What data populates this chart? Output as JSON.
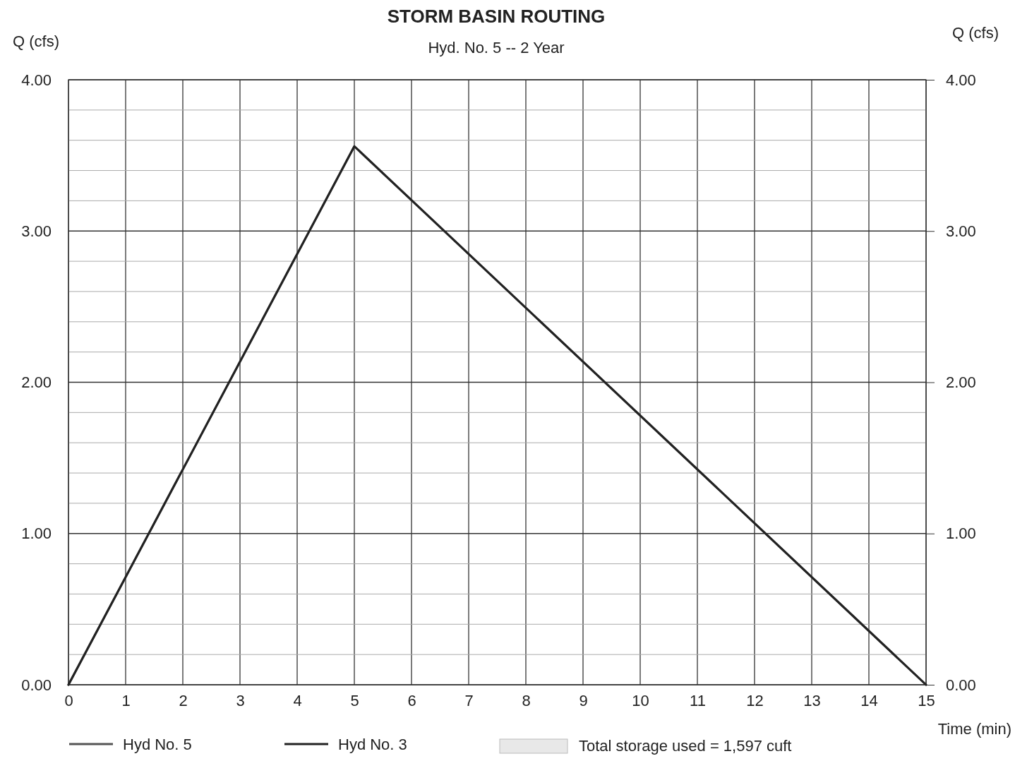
{
  "chart_data": {
    "type": "line",
    "title": "STORM BASIN ROUTING",
    "subtitle": "Hyd. No. 5 -- 2 Year",
    "xlabel": "Time (min)",
    "ylabel": "Q (cfs)",
    "y2label": "Q (cfs)",
    "x": [
      0,
      5,
      15
    ],
    "series": [
      {
        "name": "Hyd No. 5",
        "color": "#555555",
        "values": [
          0,
          3.56,
          0
        ]
      },
      {
        "name": "Hyd No. 3",
        "color": "#222222",
        "values": [
          0,
          3.56,
          0
        ]
      }
    ],
    "xlim": [
      0,
      15
    ],
    "xticks": [
      0,
      1,
      2,
      3,
      4,
      5,
      6,
      7,
      8,
      9,
      10,
      11,
      12,
      13,
      14,
      15
    ],
    "ylim": [
      0,
      4
    ],
    "yticks": [
      {
        "value": 0,
        "label": "0.00"
      },
      {
        "value": 0.2,
        "label": null
      },
      {
        "value": 0.4,
        "label": null
      },
      {
        "value": 0.6,
        "label": null
      },
      {
        "value": 0.8,
        "label": null
      },
      {
        "value": 1,
        "label": "1.00"
      },
      {
        "value": 1.2,
        "label": null
      },
      {
        "value": 1.4,
        "label": null
      },
      {
        "value": 1.6,
        "label": null
      },
      {
        "value": 1.8,
        "label": null
      },
      {
        "value": 2,
        "label": "2.00"
      },
      {
        "value": 2.2,
        "label": null
      },
      {
        "value": 2.4,
        "label": null
      },
      {
        "value": 2.6,
        "label": null
      },
      {
        "value": 2.8,
        "label": null
      },
      {
        "value": 3,
        "label": "3.00"
      },
      {
        "value": 3.2,
        "label": null
      },
      {
        "value": 3.4,
        "label": null
      },
      {
        "value": 3.6,
        "label": null
      },
      {
        "value": 3.8,
        "label": null
      },
      {
        "value": 4,
        "label": "4.00"
      }
    ],
    "y2lim": [
      0,
      4
    ],
    "y2ticks": [
      {
        "value": 0,
        "label": "0.00"
      },
      {
        "value": 1,
        "label": "1.00"
      },
      {
        "value": 2,
        "label": "2.00"
      },
      {
        "value": 3,
        "label": "3.00"
      },
      {
        "value": 4,
        "label": "4.00"
      }
    ],
    "grid": true,
    "legend": "bottom",
    "line_style": "solid",
    "marker": "none",
    "annotations": [
      "Total storage used = 1,597 cuft"
    ]
  }
}
